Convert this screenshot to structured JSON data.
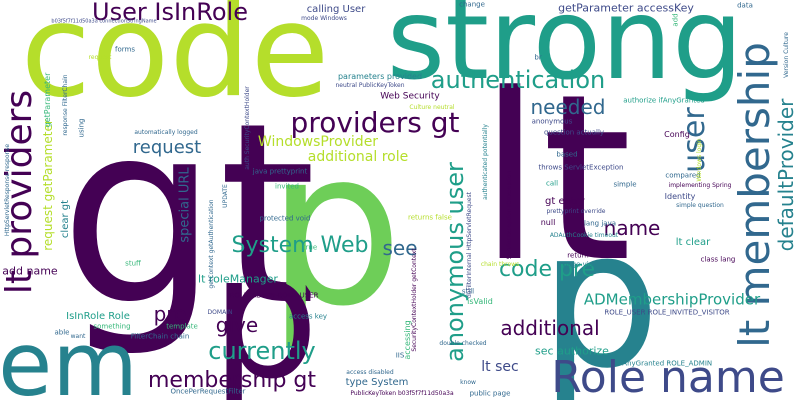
{
  "palette": [
    "#440154",
    "#482878",
    "#3e4a89",
    "#31688e",
    "#26828e",
    "#1f9e89",
    "#35b779",
    "#6ece58",
    "#b5de2b",
    "#dde318"
  ],
  "words": {
    "code": "code",
    "strong": "strong",
    "gt1": "gt",
    "gt2": "gt",
    "lt": "lt",
    "p1": "p",
    "p2": "p",
    "em": "em",
    "role_name": "Role name",
    "membership": "lt membership",
    "lt_providers": "lt providers",
    "providers_gt": "providers gt",
    "authentication": "authentication",
    "user_isinrole": "User IsInRole",
    "user": "user",
    "defaultprovider": "defaultProvider",
    "system_web": "System Web",
    "code_pre": "code pre",
    "currently": "currently",
    "membership_gt": "membership gt",
    "anonymous_user": "anonymous user",
    "additional": "additional",
    "name": "name",
    "needed": "needed",
    "request": "request",
    "pre": "pre",
    "give": "give",
    "see": "see",
    "admembershipprovider": "ADMembershipProvider",
    "request_getparameter": "request getParameter",
    "special_url": "special URL",
    "additional_role": "additional role",
    "windowsprovider": "WindowsProvider",
    "lt_sec": "lt sec",
    "lt_rolemanager": "lt roleManager",
    "isinrole_role": "IsInRole Role",
    "add_name": "add name",
    "sec_authorize": "sec authorize",
    "getparameter_accesskey": "getParameter accessKey",
    "calling_user": "calling User",
    "web_security": "Web Security",
    "parameters_provided": "parameters provided",
    "clear_gt": "clear gt",
    "lt_clear": "lt clear",
    "gt_entry": "gt entry",
    "config": "Config",
    "identity": "Identity",
    "type_system": "type System",
    "accessing": "accessing",
    "role_admin_role_user": "ROLE_ADMIN ROLE_USER",
    "authorize_ifanygranted": "authorize ifAnyGranted",
    "role_user_invited": "ROLE_USER ROLE_INVITED_VISITOR",
    "ifanygranted_role_admin": "ifAnyGranted ROLE_ADMIN",
    "throws_servletexception": "throws ServletException",
    "java_prettyprint": "java prettyprint",
    "protected_void": "protected void",
    "connectionstringname": "b03f5f7f11d50a3a connectionStringName",
    "publickeytoken": "PublicKeyToken b03f5f7f11d50a3a",
    "onceperrequestfilter": "OncePerRequestFilter",
    "filterchain_chain": "FilterChain chain",
    "access_key": "access key",
    "access_disabled": "access disabled",
    "double_checked": "double checked",
    "public_page": "public page",
    "know": "know",
    "iis": "IIS",
    "null": "null",
    "still": "still",
    "isvalid": "isValid",
    "chain_throws": "chain throws",
    "returns_false": "returns false",
    "return": "return",
    "page_via": "page via",
    "class_lang": "class lang",
    "lang_java": "lang java",
    "prettyprint_override": "prettyprint override",
    "adauthcookie_timeout": "ADAuthCookie timeout",
    "implementing_spring": "implementing Spring",
    "simple_question": "simple question",
    "compared": "compared",
    "simple": "simple",
    "call": "call",
    "based": "based",
    "question_actually": "question actually",
    "anonymous": "anonymous",
    "authenticated_potentially": "authenticated potentially",
    "servletexception_ioexception": "ServletException IOException",
    "dofilterinternal": "doFilterInternal HttpServletRequest",
    "securitycontextholder": "SecurityContextHolder getContext",
    "getcontext_getauthentication": "getContext getAuthentication",
    "automatically_logged": "automatically logged",
    "update": "UPDATE",
    "invited": "invited",
    "true": "true",
    "domain": "DOMAIN",
    "template": "template",
    "something": "something",
    "able": "able",
    "want": "want",
    "stuff": "stuff",
    "mode_windows": "mode Windows",
    "auth_securitycontextholder": "auth SecurityContextHolder",
    "neutral_publickeytoken": "neutral PublicKeyToken",
    "culture_neutral": "Culture neutral",
    "change": "change",
    "add": "add",
    "data": "data",
    "br": "br",
    "version_culture": "Version Culture",
    "windows_login": "Windows login",
    "forms": "forms",
    "using": "using",
    "response_filterchain": "response FilterChain",
    "httpservletresponse_response": "HttpServletResponse response",
    "getparameter": "getParameter",
    "request_small": "request"
  }
}
